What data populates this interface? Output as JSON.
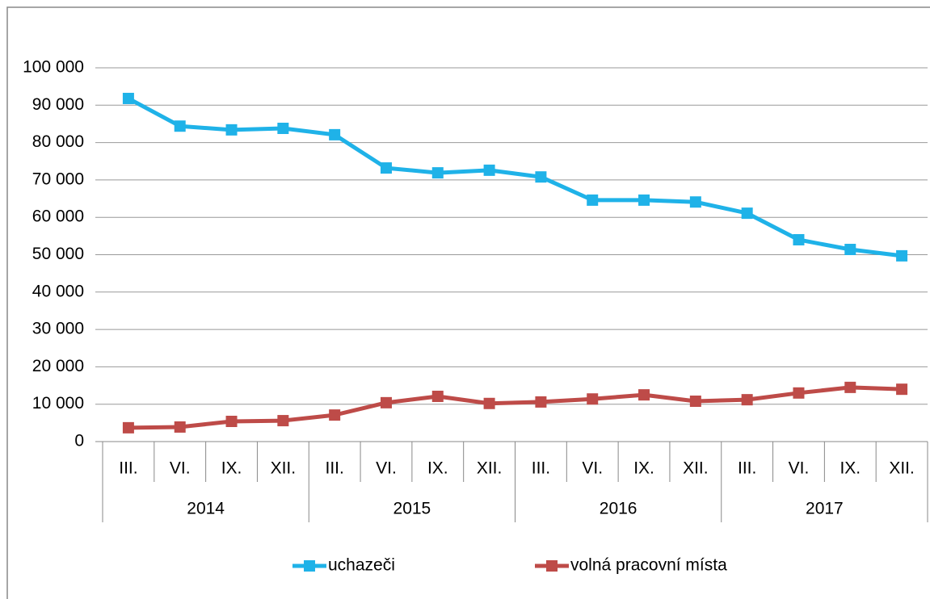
{
  "chart_data": {
    "type": "line",
    "categories": [
      "III.",
      "VI.",
      "IX.",
      "XII.",
      "III.",
      "VI.",
      "IX.",
      "XII.",
      "III.",
      "VI.",
      "IX.",
      "XII.",
      "III.",
      "VI.",
      "IX.",
      "XII."
    ],
    "category_groups": [
      "2014",
      "2015",
      "2016",
      "2017"
    ],
    "series": [
      {
        "name": "uchazeči",
        "color": "#1fb2e8",
        "values": [
          91800,
          84400,
          83400,
          83800,
          82100,
          73200,
          71900,
          72600,
          70800,
          64600,
          64600,
          64100,
          61100,
          54000,
          51400,
          49700
        ]
      },
      {
        "name": "volná pracovní místa",
        "color": "#be4b48",
        "values": [
          3700,
          3900,
          5400,
          5600,
          7100,
          10400,
          12100,
          10200,
          10600,
          11400,
          12500,
          10800,
          11200,
          13000,
          14500,
          14000
        ]
      }
    ],
    "ylim": [
      0,
      100000
    ],
    "yticks": [
      0,
      {
        "value": 10000,
        "label": "10 000"
      },
      {
        "value": 20000,
        "label": "20 000"
      },
      {
        "value": 30000,
        "label": "30 000"
      },
      {
        "value": 40000,
        "label": "40 000"
      },
      {
        "value": 50000,
        "label": "50 000"
      },
      {
        "value": 60000,
        "label": "60 000"
      },
      {
        "value": 70000,
        "label": "70 000"
      },
      {
        "value": 80000,
        "label": "80 000"
      },
      {
        "value": 90000,
        "label": "90 000"
      },
      {
        "value": 100000,
        "label": "100 000"
      }
    ],
    "grid": true,
    "legend": "bottom"
  }
}
